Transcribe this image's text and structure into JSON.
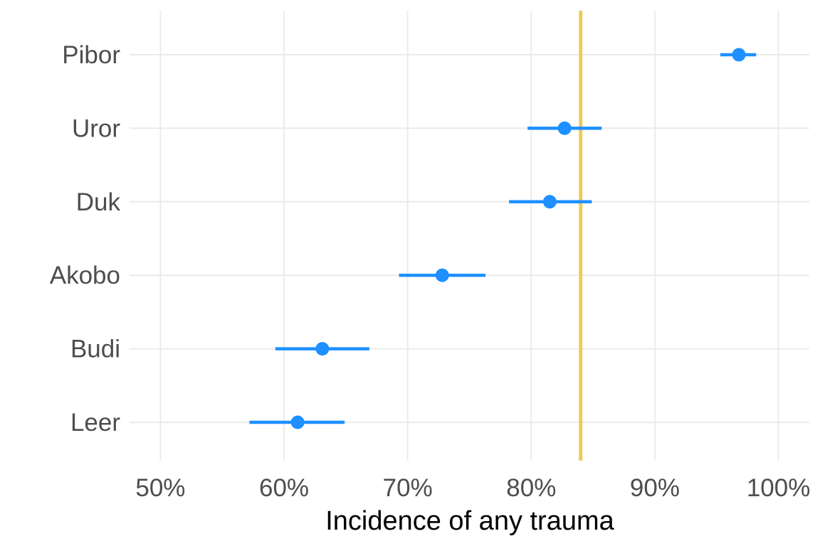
{
  "chart_data": {
    "type": "scatter",
    "subtype": "point-range",
    "title": "",
    "xlabel": "Incidence of any trauma",
    "ylabel": "",
    "xlim": [
      0.475,
      1.025
    ],
    "x_ticks": [
      0.5,
      0.6,
      0.7,
      0.8,
      0.9,
      1.0
    ],
    "x_tick_labels": [
      "50%",
      "60%",
      "70%",
      "80%",
      "90%",
      "100%"
    ],
    "categories": [
      "Pibor",
      "Uror",
      "Duk",
      "Akobo",
      "Budi",
      "Leer"
    ],
    "series": [
      {
        "values": [
          0.968,
          0.827,
          0.815,
          0.728,
          0.631,
          0.611
        ],
        "lower": [
          0.953,
          0.797,
          0.782,
          0.693,
          0.593,
          0.572
        ],
        "upper": [
          0.982,
          0.857,
          0.849,
          0.763,
          0.669,
          0.649
        ]
      }
    ],
    "reference_line": {
      "x": 0.84
    },
    "grid": true,
    "legend": "none",
    "colors": {
      "point": "#1e90ff",
      "reference": "#f0c95a",
      "grid": "#ebebeb",
      "tick_text": "#4d4d4d",
      "axis_title": "#000000"
    }
  }
}
